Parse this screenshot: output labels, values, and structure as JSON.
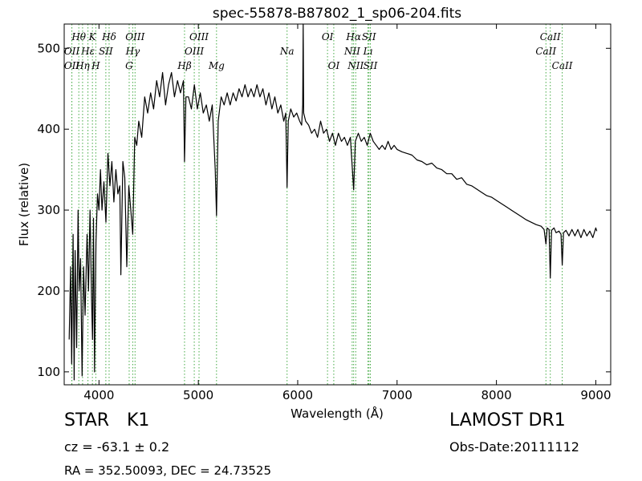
{
  "chart_data": {
    "type": "line",
    "title": "spec-55878-B87802_1_sp06-204.fits",
    "xlabel": "Wavelength (Å)",
    "ylabel": "Flux (relative)",
    "xlim": [
      3650,
      9150
    ],
    "ylim": [
      84,
      530
    ],
    "xticks": [
      4000,
      5000,
      6000,
      7000,
      8000,
      9000
    ],
    "yticks": [
      100,
      200,
      300,
      400,
      500
    ],
    "grid": false,
    "series": [
      {
        "color": "#000000",
        "points": [
          [
            3700,
            140
          ],
          [
            3715,
            230
          ],
          [
            3725,
            110
          ],
          [
            3740,
            270
          ],
          [
            3750,
            90
          ],
          [
            3760,
            250
          ],
          [
            3775,
            130
          ],
          [
            3790,
            300
          ],
          [
            3800,
            200
          ],
          [
            3815,
            240
          ],
          [
            3830,
            95
          ],
          [
            3845,
            230
          ],
          [
            3860,
            170
          ],
          [
            3880,
            270
          ],
          [
            3895,
            200
          ],
          [
            3910,
            300
          ],
          [
            3925,
            190
          ],
          [
            3935,
            140
          ],
          [
            3945,
            290
          ],
          [
            3955,
            100
          ],
          [
            3970,
            260
          ],
          [
            3985,
            320
          ],
          [
            4000,
            300
          ],
          [
            4015,
            350
          ],
          [
            4030,
            300
          ],
          [
            4050,
            335
          ],
          [
            4070,
            285
          ],
          [
            4090,
            370
          ],
          [
            4110,
            330
          ],
          [
            4130,
            360
          ],
          [
            4150,
            310
          ],
          [
            4170,
            350
          ],
          [
            4190,
            320
          ],
          [
            4210,
            330
          ],
          [
            4220,
            220
          ],
          [
            4240,
            360
          ],
          [
            4260,
            340
          ],
          [
            4280,
            230
          ],
          [
            4300,
            330
          ],
          [
            4320,
            300
          ],
          [
            4340,
            270
          ],
          [
            4360,
            390
          ],
          [
            4380,
            380
          ],
          [
            4400,
            410
          ],
          [
            4430,
            390
          ],
          [
            4460,
            440
          ],
          [
            4490,
            420
          ],
          [
            4520,
            445
          ],
          [
            4550,
            425
          ],
          [
            4580,
            460
          ],
          [
            4610,
            440
          ],
          [
            4640,
            470
          ],
          [
            4670,
            430
          ],
          [
            4700,
            455
          ],
          [
            4730,
            470
          ],
          [
            4760,
            440
          ],
          [
            4790,
            460
          ],
          [
            4820,
            445
          ],
          [
            4850,
            460
          ],
          [
            4861,
            360
          ],
          [
            4875,
            440
          ],
          [
            4900,
            440
          ],
          [
            4930,
            425
          ],
          [
            4960,
            455
          ],
          [
            4990,
            425
          ],
          [
            5020,
            445
          ],
          [
            5050,
            420
          ],
          [
            5080,
            430
          ],
          [
            5110,
            410
          ],
          [
            5140,
            430
          ],
          [
            5170,
            350
          ],
          [
            5183,
            293
          ],
          [
            5200,
            410
          ],
          [
            5230,
            440
          ],
          [
            5260,
            430
          ],
          [
            5290,
            445
          ],
          [
            5320,
            430
          ],
          [
            5350,
            445
          ],
          [
            5380,
            435
          ],
          [
            5410,
            450
          ],
          [
            5440,
            440
          ],
          [
            5470,
            455
          ],
          [
            5500,
            440
          ],
          [
            5530,
            450
          ],
          [
            5560,
            440
          ],
          [
            5590,
            455
          ],
          [
            5620,
            440
          ],
          [
            5650,
            450
          ],
          [
            5680,
            430
          ],
          [
            5710,
            445
          ],
          [
            5740,
            425
          ],
          [
            5770,
            440
          ],
          [
            5800,
            420
          ],
          [
            5830,
            430
          ],
          [
            5860,
            410
          ],
          [
            5880,
            420
          ],
          [
            5893,
            328
          ],
          [
            5905,
            410
          ],
          [
            5930,
            425
          ],
          [
            5960,
            415
          ],
          [
            5990,
            420
          ],
          [
            6020,
            410
          ],
          [
            6040,
            405
          ],
          [
            6050,
            430
          ],
          [
            6055,
            530
          ],
          [
            6060,
            420
          ],
          [
            6080,
            410
          ],
          [
            6110,
            405
          ],
          [
            6140,
            395
          ],
          [
            6170,
            400
          ],
          [
            6200,
            390
          ],
          [
            6230,
            410
          ],
          [
            6260,
            395
          ],
          [
            6290,
            400
          ],
          [
            6320,
            385
          ],
          [
            6350,
            395
          ],
          [
            6380,
            380
          ],
          [
            6410,
            395
          ],
          [
            6440,
            385
          ],
          [
            6470,
            390
          ],
          [
            6500,
            380
          ],
          [
            6530,
            390
          ],
          [
            6563,
            325
          ],
          [
            6580,
            385
          ],
          [
            6610,
            395
          ],
          [
            6640,
            385
          ],
          [
            6670,
            390
          ],
          [
            6700,
            380
          ],
          [
            6730,
            395
          ],
          [
            6760,
            385
          ],
          [
            6790,
            380
          ],
          [
            6820,
            375
          ],
          [
            6850,
            380
          ],
          [
            6880,
            375
          ],
          [
            6910,
            385
          ],
          [
            6940,
            375
          ],
          [
            6970,
            380
          ],
          [
            7000,
            375
          ],
          [
            7050,
            372
          ],
          [
            7100,
            370
          ],
          [
            7150,
            368
          ],
          [
            7200,
            362
          ],
          [
            7250,
            360
          ],
          [
            7300,
            356
          ],
          [
            7350,
            358
          ],
          [
            7400,
            352
          ],
          [
            7450,
            350
          ],
          [
            7500,
            345
          ],
          [
            7550,
            345
          ],
          [
            7600,
            338
          ],
          [
            7650,
            340
          ],
          [
            7700,
            332
          ],
          [
            7750,
            330
          ],
          [
            7800,
            326
          ],
          [
            7850,
            322
          ],
          [
            7900,
            318
          ],
          [
            7950,
            316
          ],
          [
            8000,
            312
          ],
          [
            8050,
            308
          ],
          [
            8100,
            304
          ],
          [
            8150,
            300
          ],
          [
            8200,
            296
          ],
          [
            8250,
            292
          ],
          [
            8300,
            288
          ],
          [
            8350,
            285
          ],
          [
            8400,
            282
          ],
          [
            8450,
            280
          ],
          [
            8480,
            276
          ],
          [
            8498,
            258
          ],
          [
            8510,
            278
          ],
          [
            8530,
            276
          ],
          [
            8542,
            216
          ],
          [
            8555,
            275
          ],
          [
            8580,
            278
          ],
          [
            8600,
            272
          ],
          [
            8630,
            274
          ],
          [
            8650,
            270
          ],
          [
            8662,
            232
          ],
          [
            8675,
            272
          ],
          [
            8700,
            275
          ],
          [
            8730,
            268
          ],
          [
            8760,
            276
          ],
          [
            8790,
            268
          ],
          [
            8820,
            276
          ],
          [
            8850,
            266
          ],
          [
            8880,
            276
          ],
          [
            8910,
            268
          ],
          [
            8940,
            274
          ],
          [
            8970,
            266
          ],
          [
            9000,
            278
          ],
          [
            9010,
            274
          ]
        ]
      }
    ],
    "line_markers": {
      "color": "#44aa44",
      "lines": [
        {
          "label": "Hθ",
          "x": 3797,
          "row": 1
        },
        {
          "label": "K",
          "x": 3934,
          "row": 1
        },
        {
          "label": "Hδ",
          "x": 4102,
          "row": 1
        },
        {
          "label": "OIII",
          "x": 4363,
          "row": 1
        },
        {
          "label": "OIII",
          "x": 5007,
          "row": 1
        },
        {
          "label": "OI",
          "x": 6300,
          "row": 1
        },
        {
          "label": "Hα",
          "x": 6563,
          "row": 1
        },
        {
          "label": "SII",
          "x": 6717,
          "row": 1
        },
        {
          "label": "CaII",
          "x": 8542,
          "row": 1
        },
        {
          "label": "OII",
          "x": 3727,
          "row": 2
        },
        {
          "label": "Hε",
          "x": 3889,
          "row": 2
        },
        {
          "label": "SII",
          "x": 4069,
          "row": 2
        },
        {
          "label": "Hγ",
          "x": 4340,
          "row": 2
        },
        {
          "label": "OIII",
          "x": 4959,
          "row": 2
        },
        {
          "label": "Na",
          "x": 5893,
          "row": 2
        },
        {
          "label": "NII",
          "x": 6548,
          "row": 2
        },
        {
          "label": "Lı",
          "x": 6707,
          "row": 2
        },
        {
          "label": "CaII",
          "x": 8498,
          "row": 2
        },
        {
          "label": "OII",
          "x": 3727,
          "row": 3
        },
        {
          "label": "Hη",
          "x": 3835,
          "row": 3
        },
        {
          "label": "H",
          "x": 3968,
          "row": 3
        },
        {
          "label": "G",
          "x": 4304,
          "row": 3
        },
        {
          "label": "Hβ",
          "x": 4861,
          "row": 3
        },
        {
          "label": "Mg",
          "x": 5183,
          "row": 3
        },
        {
          "label": "OI",
          "x": 6363,
          "row": 3
        },
        {
          "label": "NII",
          "x": 6584,
          "row": 3
        },
        {
          "label": "SII",
          "x": 6731,
          "row": 3
        },
        {
          "label": "CaII",
          "x": 8662,
          "row": 3
        }
      ]
    }
  },
  "info": {
    "object_class": "STAR",
    "object_subclass": "K1",
    "survey": "LAMOST DR1",
    "redshift_text": "cz = -63.1 ± 0.2",
    "obs_date_text": "Obs-Date:20111112",
    "coords_text": "RA = 352.50093, DEC = 24.73525"
  }
}
